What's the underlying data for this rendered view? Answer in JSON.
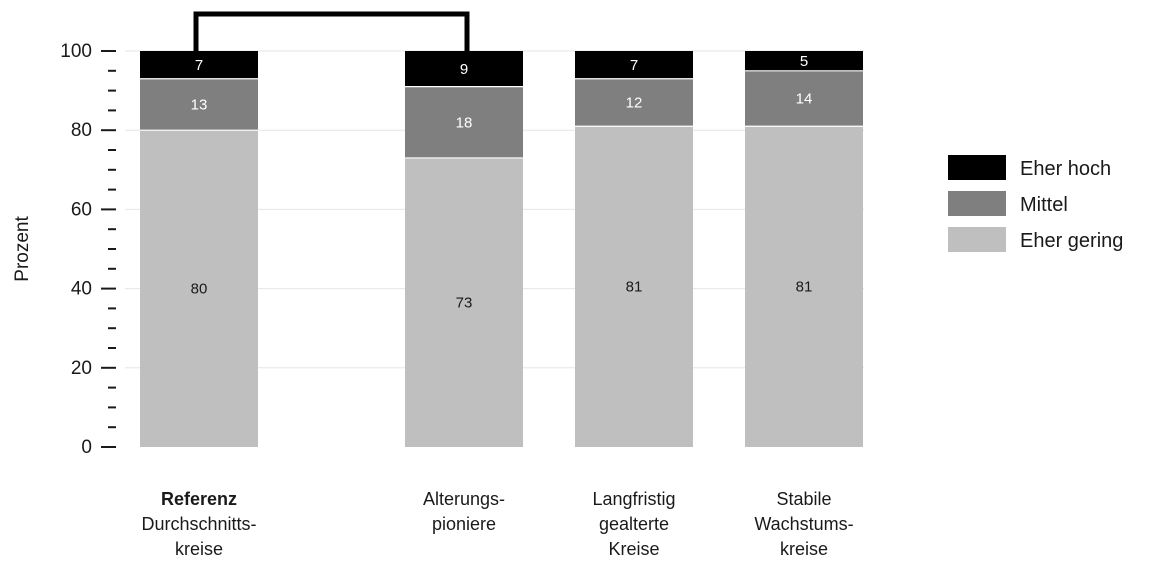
{
  "chart_data": {
    "type": "bar",
    "stacked": true,
    "ylabel": "Prozent",
    "ylim": [
      0,
      100
    ],
    "yticks": [
      0,
      20,
      40,
      60,
      80,
      100
    ],
    "grid": true,
    "legend_position": "right",
    "categories": [
      {
        "lines": [
          "Referenz",
          "Durchschnitts-",
          "kreise"
        ],
        "bold_first_line": true
      },
      {
        "lines": [
          "Alterungs-",
          "pioniere"
        ],
        "bold_first_line": false
      },
      {
        "lines": [
          "Langfristig",
          "gealterte",
          "Kreise"
        ],
        "bold_first_line": false
      },
      {
        "lines": [
          "Stabile",
          "Wachstums-",
          "kreise"
        ],
        "bold_first_line": false
      }
    ],
    "series": [
      {
        "name": "Eher gering",
        "color": "#bfbfbf",
        "label_color": "#1a1a1a",
        "values": [
          80,
          73,
          81,
          81
        ]
      },
      {
        "name": "Mittel",
        "color": "#7f7f7f",
        "label_color": "#ffffff",
        "values": [
          13,
          18,
          12,
          14
        ]
      },
      {
        "name": "Eher hoch",
        "color": "#000000",
        "label_color": "#ffffff",
        "values": [
          7,
          9,
          7,
          5
        ]
      }
    ],
    "legend_order": [
      "Eher hoch",
      "Mittel",
      "Eher gering"
    ],
    "bracket": {
      "from_category": 0,
      "to_category": 1
    }
  }
}
